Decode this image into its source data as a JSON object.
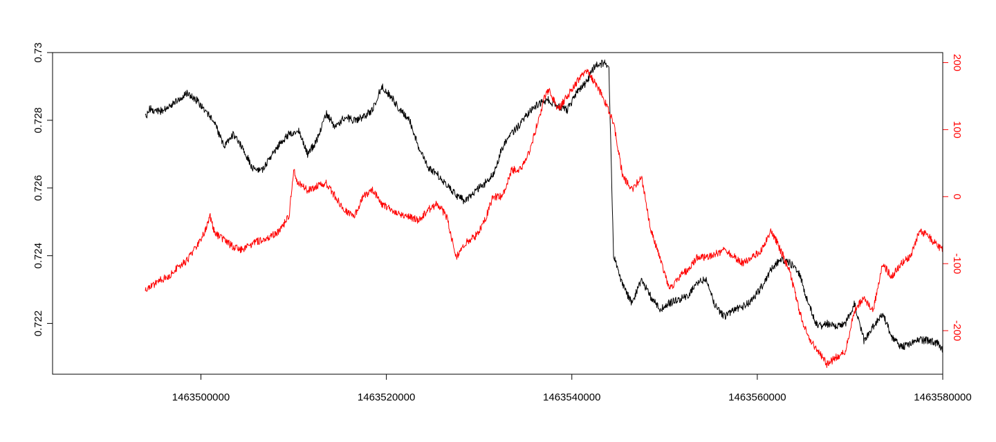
{
  "chart_data": {
    "type": "line",
    "title": "",
    "xlabel": "",
    "ylabel": "",
    "ylabel_right": "",
    "grid": false,
    "xlim": [
      1463484000,
      1463580000
    ],
    "ylim": [
      0.7205,
      0.73
    ],
    "ylim_right": [
      -265,
      215
    ],
    "x_ticks": [
      1463500000,
      1463520000,
      1463540000,
      1463560000,
      1463580000
    ],
    "x_tick_labels": [
      "1463500000",
      "1463520000",
      "1463540000",
      "1463560000",
      "1463580000"
    ],
    "y_ticks": [
      0.722,
      0.724,
      0.726,
      0.728,
      0.73
    ],
    "y_tick_labels": [
      "0.722",
      "0.724",
      "0.726",
      "0.728",
      "0.73"
    ],
    "y_right_ticks": [
      -200,
      -100,
      0,
      100,
      200
    ],
    "y_right_tick_labels": [
      "-200",
      "-100",
      "0",
      "100",
      "200"
    ],
    "colors": {
      "left_axis_series": "#000000",
      "right_axis_series": "#ff0000",
      "right_axis": "#ff0000"
    },
    "series": [
      {
        "axis": "left",
        "color": "#000000",
        "x": [
          1463494000,
          1463494500,
          1463495500,
          1463496500,
          1463497500,
          1463498500,
          1463499500,
          1463500500,
          1463501500,
          1463502500,
          1463503500,
          1463504500,
          1463505500,
          1463506500,
          1463507500,
          1463508500,
          1463509500,
          1463510500,
          1463511500,
          1463512500,
          1463513500,
          1463514500,
          1463515500,
          1463516500,
          1463517500,
          1463518500,
          1463519500,
          1463520500,
          1463521500,
          1463522500,
          1463523500,
          1463524500,
          1463525500,
          1463526500,
          1463527500,
          1463528500,
          1463529500,
          1463530500,
          1463531500,
          1463532500,
          1463533500,
          1463534500,
          1463535500,
          1463536500,
          1463537500,
          1463538500,
          1463539500,
          1463540500,
          1463541500,
          1463542500,
          1463543500,
          1463544000,
          1463544500,
          1463545500,
          1463546500,
          1463547500,
          1463548500,
          1463549500,
          1463550500,
          1463551500,
          1463552500,
          1463553500,
          1463554500,
          1463555500,
          1463556500,
          1463557500,
          1463558500,
          1463559500,
          1463560500,
          1463561500,
          1463562500,
          1463563500,
          1463564500,
          1463565500,
          1463566500,
          1463567500,
          1463568500,
          1463569500,
          1463570500,
          1463571500,
          1463572500,
          1463573500,
          1463574500,
          1463575500,
          1463576500,
          1463577500,
          1463578500,
          1463579500,
          1463580000
        ],
        "y": [
          0.72805,
          0.72835,
          0.72825,
          0.7284,
          0.7286,
          0.7288,
          0.7286,
          0.7283,
          0.7279,
          0.7272,
          0.7276,
          0.7272,
          0.7266,
          0.7265,
          0.7269,
          0.7273,
          0.7276,
          0.7277,
          0.727,
          0.7274,
          0.7282,
          0.7278,
          0.7281,
          0.728,
          0.7281,
          0.7283,
          0.729,
          0.7287,
          0.7283,
          0.728,
          0.7272,
          0.7266,
          0.7264,
          0.7261,
          0.7258,
          0.7256,
          0.7259,
          0.7261,
          0.7264,
          0.7272,
          0.7276,
          0.7279,
          0.7283,
          0.7285,
          0.7286,
          0.7284,
          0.7283,
          0.7288,
          0.7291,
          0.7296,
          0.7297,
          0.7295,
          0.724,
          0.7231,
          0.7226,
          0.7233,
          0.7228,
          0.7224,
          0.7226,
          0.7227,
          0.7228,
          0.7232,
          0.7233,
          0.7225,
          0.7222,
          0.7224,
          0.7225,
          0.7227,
          0.7231,
          0.7236,
          0.7239,
          0.7238,
          0.7235,
          0.7226,
          0.7219,
          0.722,
          0.7219,
          0.722,
          0.7226,
          0.7215,
          0.7219,
          0.7223,
          0.7216,
          0.7213,
          0.7214,
          0.7215,
          0.7215,
          0.7214,
          0.7212
        ]
      },
      {
        "axis": "right",
        "color": "#ff0000",
        "x": [
          1463494000,
          1463494500,
          1463495500,
          1463496500,
          1463497500,
          1463498500,
          1463499500,
          1463500500,
          1463501000,
          1463501500,
          1463502500,
          1463503500,
          1463504500,
          1463505500,
          1463506500,
          1463507500,
          1463508500,
          1463509500,
          1463510000,
          1463510500,
          1463511500,
          1463512500,
          1463513500,
          1463514500,
          1463515500,
          1463516500,
          1463517500,
          1463518500,
          1463519500,
          1463520500,
          1463521500,
          1463522500,
          1463523500,
          1463524500,
          1463525500,
          1463526500,
          1463527500,
          1463528500,
          1463529500,
          1463530500,
          1463531500,
          1463532500,
          1463533500,
          1463534500,
          1463535500,
          1463536500,
          1463537000,
          1463537500,
          1463538500,
          1463539500,
          1463540500,
          1463541500,
          1463542500,
          1463543500,
          1463544500,
          1463545500,
          1463546500,
          1463547500,
          1463548500,
          1463549500,
          1463550500,
          1463551500,
          1463552500,
          1463553500,
          1463554500,
          1463555500,
          1463556500,
          1463557500,
          1463558500,
          1463559500,
          1463560500,
          1463561500,
          1463562500,
          1463563500,
          1463564500,
          1463565500,
          1463566500,
          1463567500,
          1463568500,
          1463569500,
          1463570500,
          1463571500,
          1463572500,
          1463573500,
          1463574500,
          1463575500,
          1463576500,
          1463577500,
          1463578500,
          1463579500,
          1463580000
        ],
        "y": [
          -140,
          -135,
          -125,
          -120,
          -105,
          -95,
          -75,
          -50,
          -30,
          -55,
          -65,
          -75,
          -80,
          -70,
          -65,
          -60,
          -50,
          -30,
          40,
          20,
          10,
          15,
          20,
          0,
          -20,
          -30,
          0,
          10,
          -10,
          -20,
          -25,
          -30,
          -35,
          -20,
          -10,
          -30,
          -90,
          -70,
          -60,
          -40,
          0,
          0,
          40,
          40,
          70,
          120,
          145,
          160,
          130,
          150,
          170,
          190,
          170,
          145,
          110,
          30,
          10,
          30,
          -50,
          -90,
          -140,
          -120,
          -110,
          -90,
          -90,
          -85,
          -80,
          -90,
          -100,
          -90,
          -80,
          -50,
          -80,
          -110,
          -170,
          -210,
          -230,
          -250,
          -240,
          -230,
          -170,
          -150,
          -170,
          -100,
          -120,
          -100,
          -90,
          -50,
          -60,
          -75,
          -80
        ]
      }
    ]
  }
}
